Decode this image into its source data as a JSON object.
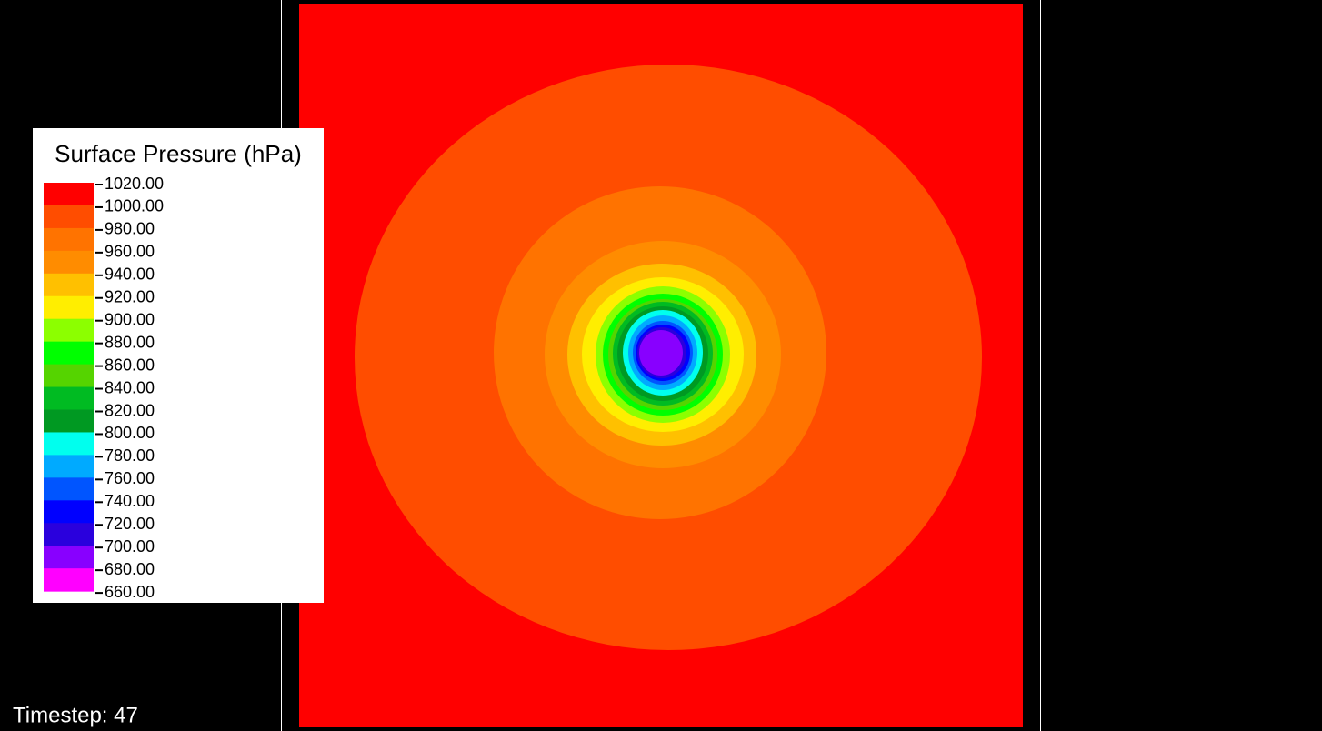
{
  "legend": {
    "title": "Surface Pressure (hPa)",
    "labels": [
      "1020.00",
      "1000.00",
      "980.00",
      "960.00",
      "940.00",
      "920.00",
      "900.00",
      "880.00",
      "860.00",
      "840.00",
      "820.00",
      "800.00",
      "780.00",
      "760.00",
      "740.00",
      "720.00",
      "700.00",
      "680.00",
      "660.00"
    ],
    "colors": [
      "#ff0000",
      "#ff4d00",
      "#ff7300",
      "#ff8c00",
      "#ffc000",
      "#ffee00",
      "#8cff00",
      "#00ff00",
      "#55d400",
      "#00bb22",
      "#009922",
      "#00ffee",
      "#00aaff",
      "#0055ff",
      "#0000ff",
      "#2a00dd",
      "#8800ff",
      "#ff00ff"
    ]
  },
  "timestep": "Timestep: 47"
}
